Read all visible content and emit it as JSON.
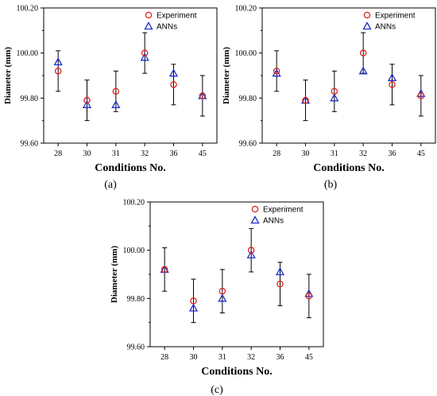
{
  "chart_data": [
    {
      "type": "scatter",
      "panel_label": "(a)",
      "xlabel": "Conditions No.",
      "ylabel": "Diameter (mm)",
      "categories": [
        "28",
        "30",
        "31",
        "32",
        "36",
        "45"
      ],
      "ylim": [
        99.6,
        100.2
      ],
      "yticks": [
        "99.60",
        "99.80",
        "100.00",
        "100.20"
      ],
      "grid": false,
      "legend_position": "top-right",
      "series": [
        {
          "name": "Experiment",
          "marker": "circle",
          "color": "#e0201b",
          "values": [
            99.92,
            99.79,
            99.83,
            100.0,
            99.86,
            99.81
          ],
          "error_low": [
            99.83,
            99.7,
            99.74,
            99.91,
            99.77,
            99.72
          ],
          "error_high": [
            100.01,
            99.88,
            99.92,
            100.09,
            99.95,
            99.9
          ]
        },
        {
          "name": "ANNs",
          "marker": "triangle",
          "color": "#1f2fd1",
          "values": [
            99.96,
            99.77,
            99.77,
            99.98,
            99.91,
            99.81
          ]
        }
      ]
    },
    {
      "type": "scatter",
      "panel_label": "(b)",
      "xlabel": "Conditions No.",
      "ylabel": "Diameter (mm)",
      "categories": [
        "28",
        "30",
        "31",
        "32",
        "36",
        "45"
      ],
      "ylim": [
        99.6,
        100.2
      ],
      "yticks": [
        "99.60",
        "99.80",
        "100.00",
        "100.20"
      ],
      "grid": false,
      "legend_position": "top-right",
      "series": [
        {
          "name": "Experiment",
          "marker": "circle",
          "color": "#e0201b",
          "values": [
            99.92,
            99.79,
            99.83,
            100.0,
            99.86,
            99.81
          ],
          "error_low": [
            99.83,
            99.7,
            99.74,
            99.91,
            99.77,
            99.72
          ],
          "error_high": [
            100.01,
            99.88,
            99.92,
            100.09,
            99.95,
            99.9
          ]
        },
        {
          "name": "ANNs",
          "marker": "triangle",
          "color": "#1f2fd1",
          "values": [
            99.91,
            99.79,
            99.8,
            99.92,
            99.89,
            99.82
          ]
        }
      ]
    },
    {
      "type": "scatter",
      "panel_label": "(c)",
      "xlabel": "Conditions No.",
      "ylabel": "Diameter (mm)",
      "categories": [
        "28",
        "30",
        "31",
        "32",
        "36",
        "45"
      ],
      "ylim": [
        99.6,
        100.2
      ],
      "yticks": [
        "99.60",
        "99.80",
        "100.00",
        "100.20"
      ],
      "grid": false,
      "legend_position": "top-right",
      "series": [
        {
          "name": "Experiment",
          "marker": "circle",
          "color": "#e0201b",
          "values": [
            99.92,
            99.79,
            99.83,
            100.0,
            99.86,
            99.81
          ],
          "error_low": [
            99.83,
            99.7,
            99.74,
            99.91,
            99.77,
            99.72
          ],
          "error_high": [
            100.01,
            99.88,
            99.92,
            100.09,
            99.95,
            99.9
          ]
        },
        {
          "name": "ANNs",
          "marker": "triangle",
          "color": "#1f2fd1",
          "values": [
            99.92,
            99.76,
            99.8,
            99.98,
            99.91,
            99.82
          ]
        }
      ]
    }
  ]
}
